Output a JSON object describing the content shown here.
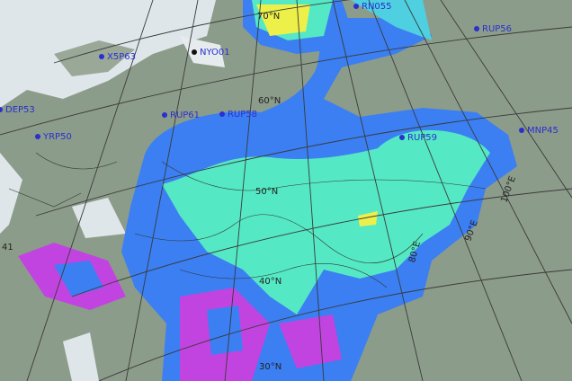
{
  "stations": [
    "RN055",
    "RUP56",
    "X5P63",
    "NYO01",
    "DEP53",
    "RUP61",
    "RUP58",
    "RUP59",
    "MNP45",
    "YRP50"
  ],
  "latitudes": [
    "70°N",
    "60°N",
    "50°N",
    "40°N",
    "30°N"
  ],
  "longitudes": [
    "100°E",
    "90°E",
    "80°E",
    "41"
  ]
}
